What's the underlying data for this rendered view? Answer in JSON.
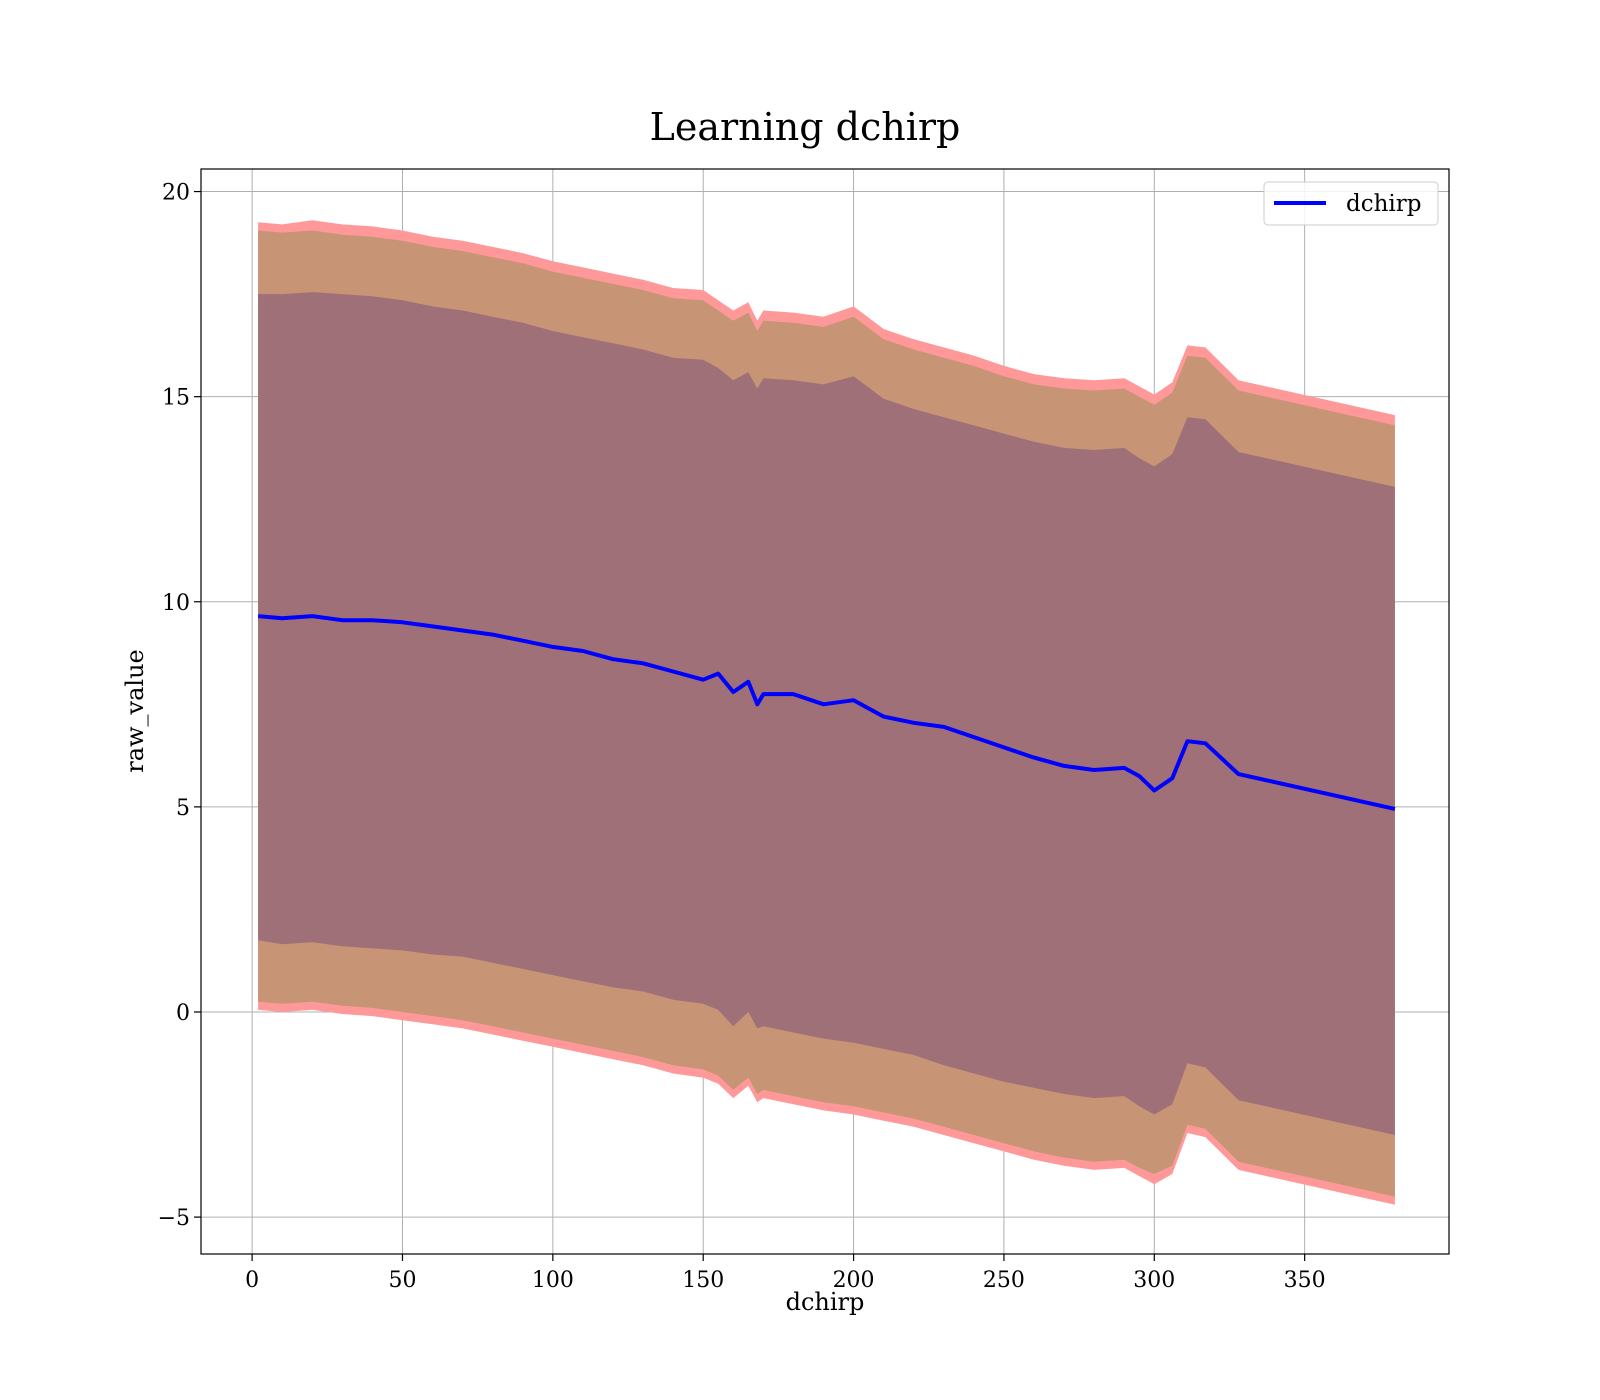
{
  "chart_data": {
    "type": "line",
    "title": "Learning dchirp",
    "xlabel": "dchirp",
    "ylabel": "raw_value",
    "xlim": [
      -17,
      398
    ],
    "ylim": [
      -5.9,
      20.55
    ],
    "xticks": [
      0,
      50,
      100,
      150,
      200,
      250,
      300,
      350
    ],
    "yticks": [
      -5,
      0,
      5,
      10,
      15,
      20
    ],
    "ytick_labels": [
      "−5",
      "0",
      "5",
      "10",
      "15",
      "20"
    ],
    "grid": true,
    "legend": {
      "placement": "top-right",
      "entries": [
        "dchirp"
      ]
    },
    "colors": {
      "line": "#0000ff",
      "band_outer": "#ff9999",
      "band_mid": "#c79575",
      "band_inner": "#a07078"
    },
    "x": [
      2,
      10,
      20,
      30,
      40,
      50,
      60,
      70,
      80,
      90,
      100,
      110,
      120,
      130,
      140,
      150,
      155,
      160,
      165,
      168,
      170,
      180,
      190,
      200,
      210,
      220,
      230,
      240,
      250,
      260,
      270,
      280,
      290,
      295,
      300,
      306,
      311,
      317,
      328,
      380
    ],
    "series": [
      {
        "name": "dchirp",
        "values": [
          9.65,
          9.6,
          9.65,
          9.55,
          9.55,
          9.5,
          9.4,
          9.3,
          9.2,
          9.05,
          8.9,
          8.8,
          8.6,
          8.5,
          8.3,
          8.1,
          8.25,
          7.8,
          8.05,
          7.5,
          7.75,
          7.75,
          7.5,
          7.6,
          7.2,
          7.05,
          6.95,
          6.7,
          6.45,
          6.2,
          6.0,
          5.9,
          5.95,
          5.75,
          5.4,
          5.7,
          6.6,
          6.55,
          5.8,
          4.95
        ],
        "std1_upper": [
          17.5,
          17.5,
          17.55,
          17.5,
          17.45,
          17.35,
          17.2,
          17.1,
          16.95,
          16.8,
          16.6,
          16.45,
          16.3,
          16.15,
          15.95,
          15.9,
          15.7,
          15.4,
          15.6,
          15.2,
          15.45,
          15.4,
          15.3,
          15.5,
          14.95,
          14.7,
          14.5,
          14.3,
          14.1,
          13.9,
          13.75,
          13.7,
          13.75,
          13.5,
          13.3,
          13.6,
          14.5,
          14.45,
          13.65,
          12.8
        ],
        "std1_lower": [
          1.75,
          1.65,
          1.7,
          1.6,
          1.55,
          1.5,
          1.4,
          1.35,
          1.2,
          1.05,
          0.9,
          0.75,
          0.6,
          0.5,
          0.3,
          0.2,
          0.05,
          -0.35,
          0.0,
          -0.4,
          -0.35,
          -0.5,
          -0.65,
          -0.75,
          -0.9,
          -1.05,
          -1.3,
          -1.5,
          -1.7,
          -1.85,
          -2.0,
          -2.1,
          -2.05,
          -2.3,
          -2.5,
          -2.25,
          -1.25,
          -1.35,
          -2.15,
          -3.0
        ],
        "std2_upper": [
          19.05,
          19.0,
          19.05,
          18.95,
          18.9,
          18.8,
          18.65,
          18.55,
          18.4,
          18.25,
          18.05,
          17.9,
          17.75,
          17.6,
          17.4,
          17.35,
          17.1,
          16.85,
          17.05,
          16.6,
          16.85,
          16.8,
          16.7,
          16.95,
          16.4,
          16.15,
          15.95,
          15.75,
          15.5,
          15.3,
          15.2,
          15.15,
          15.2,
          15.0,
          14.8,
          15.1,
          16.0,
          15.95,
          15.15,
          14.3
        ],
        "std2_lower": [
          0.25,
          0.2,
          0.25,
          0.15,
          0.1,
          0.0,
          -0.1,
          -0.2,
          -0.35,
          -0.5,
          -0.65,
          -0.8,
          -0.95,
          -1.1,
          -1.3,
          -1.4,
          -1.55,
          -1.9,
          -1.6,
          -2.0,
          -1.9,
          -2.05,
          -2.2,
          -2.3,
          -2.45,
          -2.6,
          -2.8,
          -3.0,
          -3.2,
          -3.4,
          -3.55,
          -3.65,
          -3.6,
          -3.8,
          -3.95,
          -3.75,
          -2.75,
          -2.85,
          -3.65,
          -4.5
        ],
        "std3_upper": [
          19.25,
          19.2,
          19.3,
          19.2,
          19.15,
          19.05,
          18.9,
          18.8,
          18.65,
          18.5,
          18.3,
          18.15,
          18.0,
          17.85,
          17.65,
          17.6,
          17.35,
          17.1,
          17.3,
          16.85,
          17.1,
          17.05,
          16.95,
          17.2,
          16.65,
          16.4,
          16.2,
          16.0,
          15.75,
          15.55,
          15.45,
          15.4,
          15.45,
          15.25,
          15.05,
          15.35,
          16.25,
          16.2,
          15.4,
          14.55
        ],
        "std3_lower": [
          0.05,
          0.0,
          0.05,
          -0.05,
          -0.1,
          -0.2,
          -0.3,
          -0.4,
          -0.55,
          -0.7,
          -0.85,
          -1.0,
          -1.15,
          -1.3,
          -1.5,
          -1.6,
          -1.75,
          -2.1,
          -1.8,
          -2.2,
          -2.1,
          -2.25,
          -2.4,
          -2.5,
          -2.65,
          -2.8,
          -3.0,
          -3.2,
          -3.4,
          -3.6,
          -3.75,
          -3.85,
          -3.8,
          -4.0,
          -4.2,
          -3.95,
          -2.95,
          -3.05,
          -3.85,
          -4.7
        ]
      }
    ]
  }
}
